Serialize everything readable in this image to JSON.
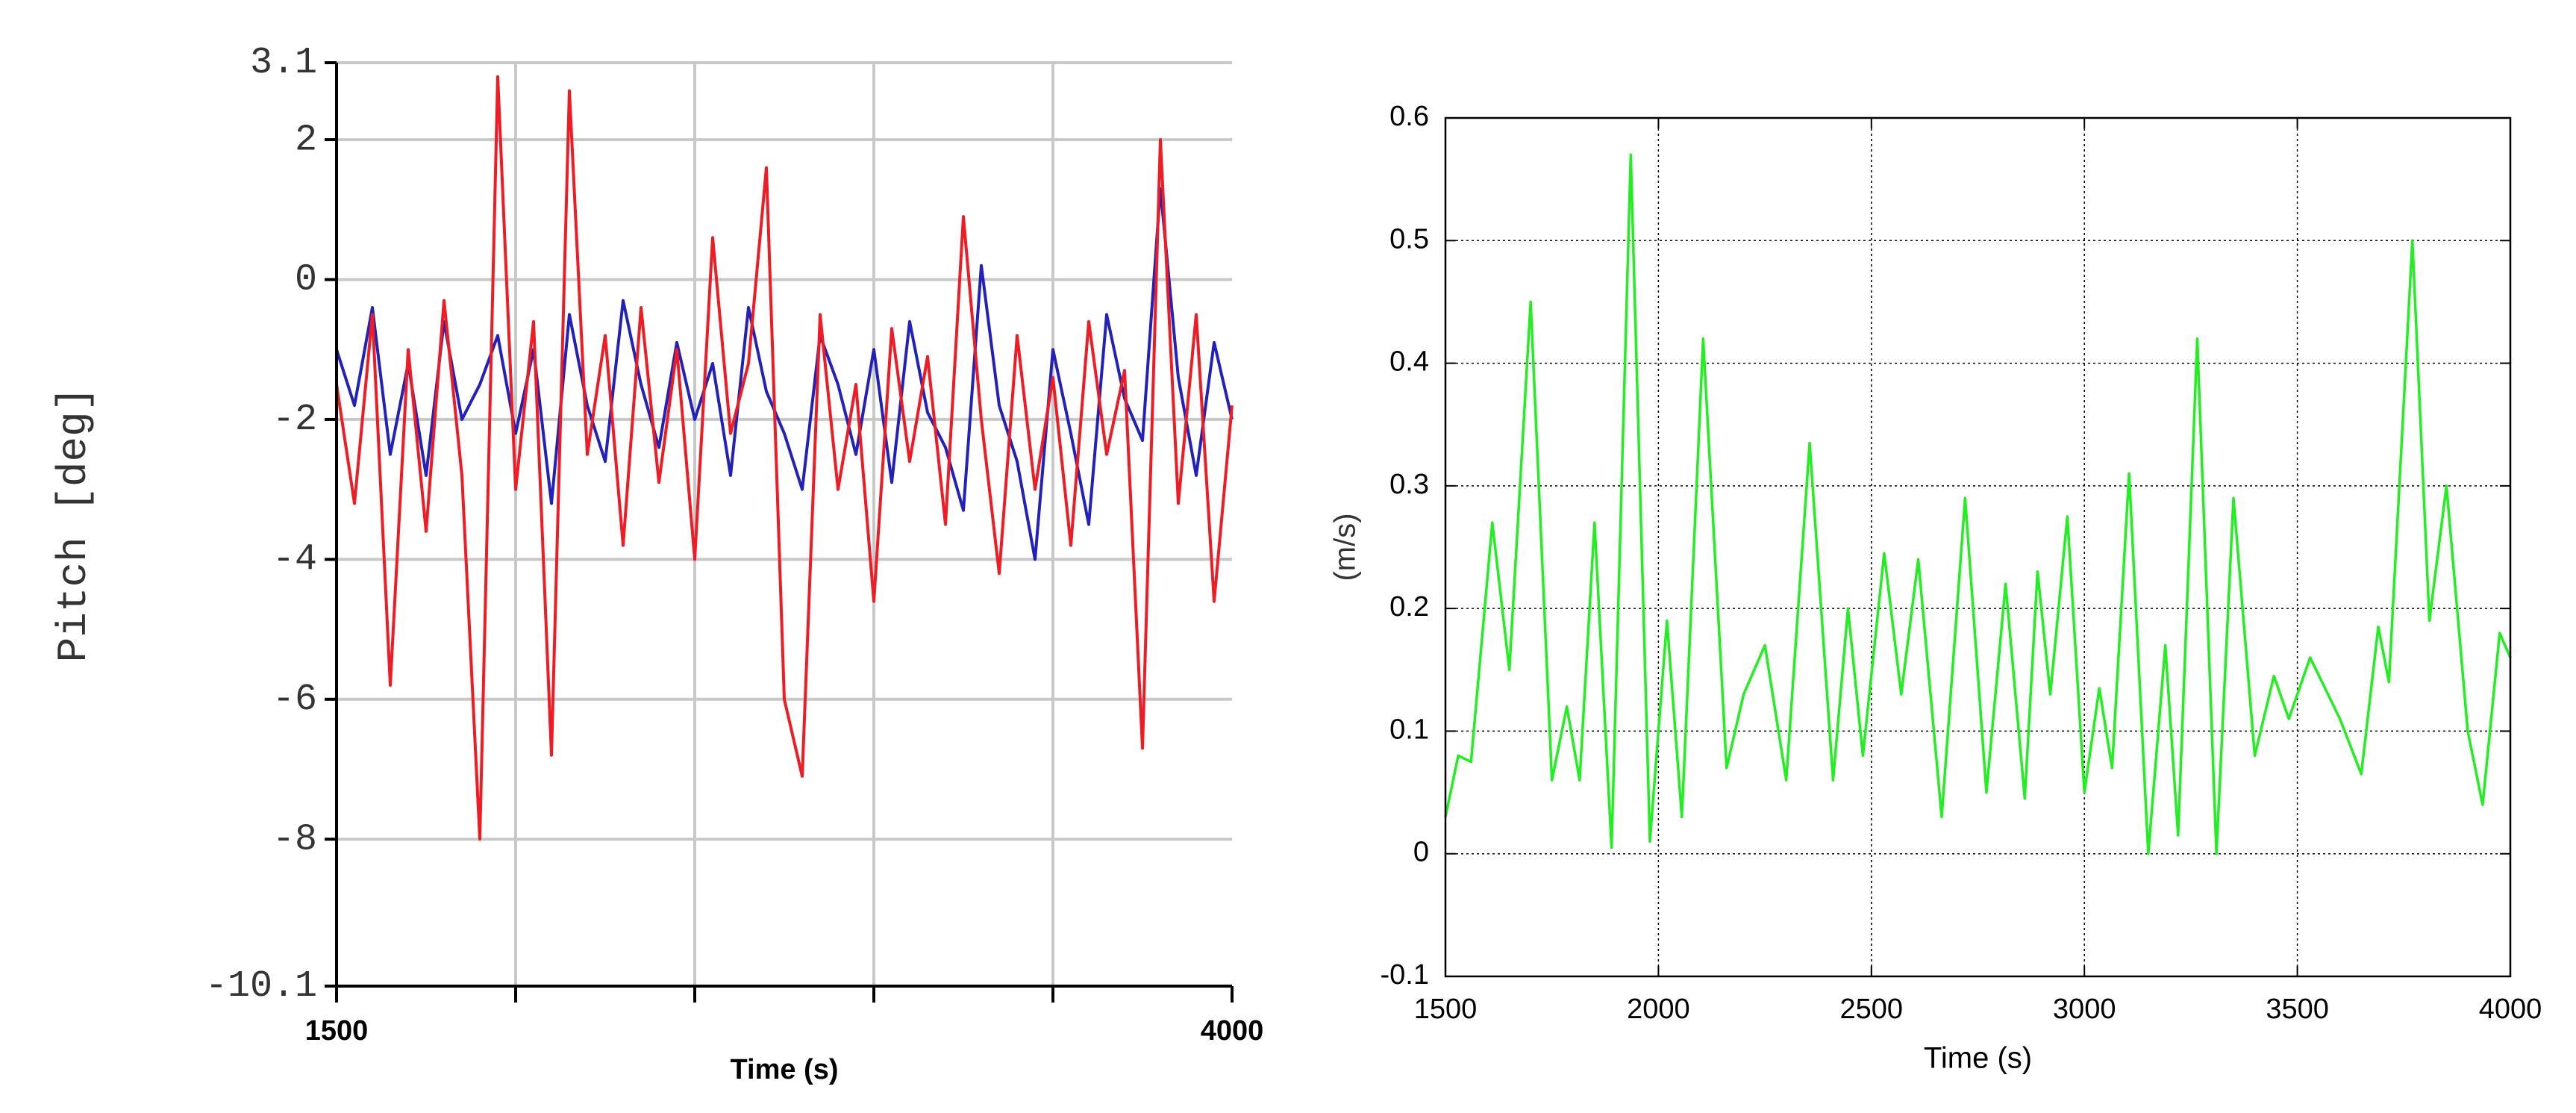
{
  "chart_data": [
    {
      "type": "line",
      "ylabel": "Pitch [deg]",
      "xlabel": "Time (s)",
      "x": [
        1500,
        1550,
        1600,
        1650,
        1700,
        1750,
        1800,
        1850,
        1900,
        1950,
        2000,
        2050,
        2100,
        2150,
        2200,
        2250,
        2300,
        2350,
        2400,
        2450,
        2500,
        2550,
        2600,
        2650,
        2700,
        2750,
        2800,
        2850,
        2900,
        2950,
        3000,
        3050,
        3100,
        3150,
        3200,
        3250,
        3300,
        3350,
        3400,
        3450,
        3500,
        3550,
        3600,
        3650,
        3700,
        3750,
        3800,
        3850,
        3900,
        3950,
        4000
      ],
      "series": [
        {
          "color": "#2222bb",
          "values": [
            -1.0,
            -1.8,
            -0.4,
            -2.5,
            -1.2,
            -2.8,
            -0.6,
            -2.0,
            -1.5,
            -0.8,
            -2.2,
            -1.0,
            -3.2,
            -0.5,
            -1.8,
            -2.6,
            -0.3,
            -1.5,
            -2.4,
            -0.9,
            -2.0,
            -1.2,
            -2.8,
            -0.4,
            -1.6,
            -2.2,
            -3.0,
            -0.8,
            -1.5,
            -2.5,
            -1.0,
            -2.9,
            -0.6,
            -1.9,
            -2.4,
            -3.3,
            0.2,
            -1.8,
            -2.6,
            -4.0,
            -1.0,
            -2.2,
            -3.5,
            -0.5,
            -1.7,
            -2.3,
            1.3,
            -1.4,
            -2.8,
            -0.9,
            -2.0
          ]
        },
        {
          "color": "#ee1c25",
          "values": [
            -1.5,
            -3.2,
            -0.5,
            -5.8,
            -1.0,
            -3.6,
            -0.3,
            -2.8,
            -8.0,
            2.9,
            -3.0,
            -0.6,
            -6.8,
            2.7,
            -2.5,
            -0.8,
            -3.8,
            -0.4,
            -2.9,
            -1.0,
            -4.0,
            0.6,
            -2.2,
            -1.2,
            1.6,
            -6.0,
            -7.1,
            -0.5,
            -3.0,
            -1.5,
            -4.6,
            -0.7,
            -2.6,
            -1.1,
            -3.5,
            0.9,
            -2.0,
            -4.2,
            -0.8,
            -3.0,
            -1.4,
            -3.8,
            -0.6,
            -2.5,
            -1.3,
            -6.7,
            2.0,
            -3.2,
            -0.5,
            -4.6,
            -1.8
          ]
        }
      ],
      "xlim": [
        1500,
        4000
      ],
      "xticks": [
        1500,
        {
          "value": 2000,
          "label": null
        },
        {
          "value": 2500,
          "label": null
        },
        {
          "value": 3000,
          "label": null
        },
        {
          "value": 3500,
          "label": null
        },
        4000
      ],
      "ylim": [
        -10.1,
        3.1
      ],
      "yticks": [
        3.1,
        2,
        0,
        -2,
        -4,
        -6,
        -8,
        -10.1
      ],
      "grid": true
    },
    {
      "type": "line",
      "ylabel": "(m/s)",
      "xlabel": "Time (s)",
      "x": [
        1500,
        1530,
        1560,
        1610,
        1650,
        1700,
        1750,
        1785,
        1815,
        1850,
        1890,
        1935,
        1980,
        2020,
        2055,
        2105,
        2160,
        2200,
        2250,
        2300,
        2355,
        2410,
        2445,
        2480,
        2530,
        2570,
        2610,
        2665,
        2720,
        2770,
        2815,
        2860,
        2890,
        2920,
        2960,
        3000,
        3035,
        3065,
        3105,
        3150,
        3190,
        3220,
        3265,
        3310,
        3350,
        3400,
        3445,
        3480,
        3530,
        3600,
        3650,
        3690,
        3715,
        3770,
        3810,
        3850,
        3900,
        3935,
        3975,
        4000
      ],
      "series": [
        {
          "color": "#22ee22",
          "values": [
            0.03,
            0.08,
            0.075,
            0.27,
            0.15,
            0.45,
            0.06,
            0.12,
            0.06,
            0.27,
            0.005,
            0.57,
            0.01,
            0.19,
            0.03,
            0.42,
            0.07,
            0.13,
            0.17,
            0.06,
            0.335,
            0.06,
            0.2,
            0.08,
            0.245,
            0.13,
            0.24,
            0.03,
            0.29,
            0.05,
            0.22,
            0.045,
            0.23,
            0.13,
            0.275,
            0.05,
            0.135,
            0.07,
            0.31,
            0.0,
            0.17,
            0.015,
            0.42,
            0.0,
            0.29,
            0.08,
            0.145,
            0.11,
            0.16,
            0.11,
            0.065,
            0.185,
            0.14,
            0.5,
            0.19,
            0.3,
            0.1,
            0.04,
            0.18,
            0.16
          ]
        }
      ],
      "xlim": [
        1500,
        4000
      ],
      "xticks": [
        1500,
        2000,
        2500,
        3000,
        3500,
        4000
      ],
      "ylim": [
        -0.1,
        0.6
      ],
      "yticks": [
        -0.1,
        0,
        0.1,
        0.2,
        0.3,
        0.4,
        0.5,
        0.6
      ],
      "grid": true
    }
  ]
}
